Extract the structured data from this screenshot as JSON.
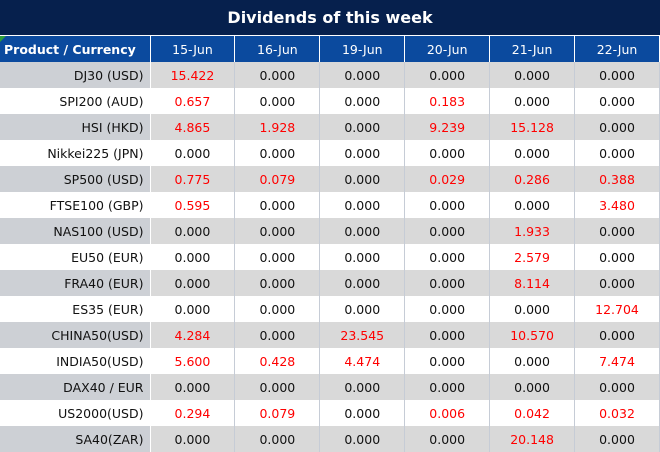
{
  "title": "Dividends of this week",
  "header": [
    "Product / Currency",
    "15-Jun",
    "16-Jun",
    "19-Jun",
    "20-Jun",
    "21-Jun",
    "22-Jun"
  ],
  "colors": {
    "title_bg": "#06204d",
    "header_bg": "#0b4a9e",
    "positive": "#ff0000"
  },
  "rows": [
    [
      "DJ30 (USD)",
      "15.422",
      "0.000",
      "0.000",
      "0.000",
      "0.000",
      "0.000"
    ],
    [
      "SPI200 (AUD)",
      "0.657",
      "0.000",
      "0.000",
      "0.183",
      "0.000",
      "0.000"
    ],
    [
      "HSI (HKD)",
      "4.865",
      "1.928",
      "0.000",
      "9.239",
      "15.128",
      "0.000"
    ],
    [
      "Nikkei225 (JPN)",
      "0.000",
      "0.000",
      "0.000",
      "0.000",
      "0.000",
      "0.000"
    ],
    [
      "SP500 (USD)",
      "0.775",
      "0.079",
      "0.000",
      "0.029",
      "0.286",
      "0.388"
    ],
    [
      "FTSE100 (GBP)",
      "0.595",
      "0.000",
      "0.000",
      "0.000",
      "0.000",
      "3.480"
    ],
    [
      "NAS100 (USD)",
      "0.000",
      "0.000",
      "0.000",
      "0.000",
      "1.933",
      "0.000"
    ],
    [
      "EU50 (EUR)",
      "0.000",
      "0.000",
      "0.000",
      "0.000",
      "2.579",
      "0.000"
    ],
    [
      "FRA40 (EUR)",
      "0.000",
      "0.000",
      "0.000",
      "0.000",
      "8.114",
      "0.000"
    ],
    [
      "ES35 (EUR)",
      "0.000",
      "0.000",
      "0.000",
      "0.000",
      "0.000",
      "12.704"
    ],
    [
      "CHINA50(USD)",
      "4.284",
      "0.000",
      "23.545",
      "0.000",
      "10.570",
      "0.000"
    ],
    [
      "INDIA50(USD)",
      "5.600",
      "0.428",
      "4.474",
      "0.000",
      "0.000",
      "7.474"
    ],
    [
      "DAX40 / EUR",
      "0.000",
      "0.000",
      "0.000",
      "0.000",
      "0.000",
      "0.000"
    ],
    [
      "US2000(USD)",
      "0.294",
      "0.079",
      "0.000",
      "0.006",
      "0.042",
      "0.032"
    ],
    [
      "SA40(ZAR)",
      "0.000",
      "0.000",
      "0.000",
      "0.000",
      "20.148",
      "0.000"
    ]
  ]
}
